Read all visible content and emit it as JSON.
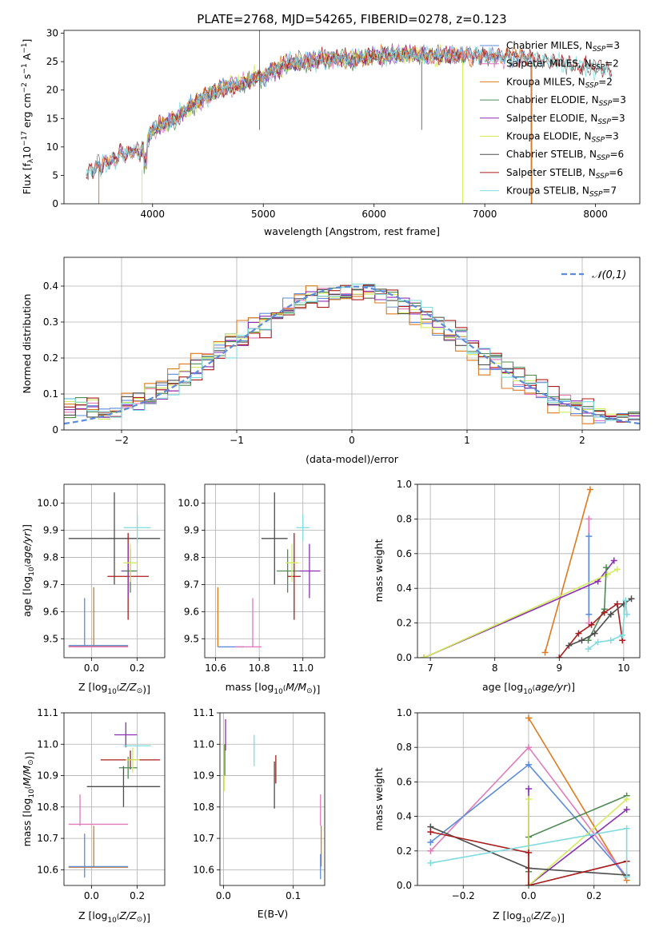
{
  "title": "PLATE=2768, MJD=54265, FIBERID=0278, z=0.123",
  "colors": {
    "Chabrier MILES": "#5b8bd9",
    "Salpeter MILES": "#e07ab9",
    "Kroupa MILES": "#de7a1d",
    "Chabrier ELODIE": "#4f8a54",
    "Salpeter ELODIE": "#8b2eb3",
    "Kroupa ELODIE": "#d4eb5c",
    "Chabrier STELIB": "#4d4d4d",
    "Salpeter STELIB": "#a81c1c",
    "Kroupa STELIB": "#7fdbde",
    "gaussian": "#5b8bd9"
  },
  "chart_data": [
    {
      "id": "spectrum",
      "type": "line",
      "xlabel": "wavelength [Angstrom, rest frame]",
      "ylabel": "Flux [f",
      "ylabel_parts": [
        "Flux [f",
        "λ",
        "10",
        "−17",
        " erg cm",
        "−2",
        " s",
        "−1",
        " A",
        "−1",
        "]"
      ],
      "xlim": [
        3200,
        8400
      ],
      "ylim": [
        0,
        30.5
      ],
      "xticks": [
        4000,
        5000,
        6000,
        7000,
        8000
      ],
      "yticks": [
        0,
        5,
        10,
        15,
        20,
        25,
        30
      ],
      "legend": "top-right",
      "series": [
        {
          "name": "Chabrier MILES",
          "label": "Chabrier MILES, N",
          "sub": "SSP",
          "n": "=3",
          "range": [
            3450,
            7420
          ]
        },
        {
          "name": "Salpeter MILES",
          "label": "Salpeter MILES, N",
          "sub": "SSP",
          "n": "=2",
          "range": [
            3450,
            7420
          ]
        },
        {
          "name": "Kroupa MILES",
          "label": "Kroupa MILES, N",
          "sub": "SSP",
          "n": "=2",
          "range": [
            3450,
            7420
          ]
        },
        {
          "name": "Chabrier ELODIE",
          "label": "Chabrier ELODIE, N",
          "sub": "SSP",
          "n": "=3",
          "range": [
            3900,
            6800
          ]
        },
        {
          "name": "Salpeter ELODIE",
          "label": "Salpeter ELODIE, N",
          "sub": "SSP",
          "n": "=3",
          "range": [
            3900,
            6800
          ]
        },
        {
          "name": "Kroupa ELODIE",
          "label": "Kroupa ELODIE, N",
          "sub": "SSP",
          "n": "=3",
          "range": [
            3900,
            6800
          ]
        },
        {
          "name": "Chabrier STELIB",
          "label": "Chabrier STELIB, N",
          "sub": "SSP",
          "n": "=6",
          "range": [
            3400,
            8150
          ]
        },
        {
          "name": "Salpeter STELIB",
          "label": "Salpeter STELIB, N",
          "sub": "SSP",
          "n": "=6",
          "range": [
            3400,
            8150
          ]
        },
        {
          "name": "Kroupa STELIB",
          "label": "Kroupa STELIB, N",
          "sub": "SSP",
          "n": "=7",
          "range": [
            3400,
            8150
          ]
        }
      ],
      "data_envelope": {
        "x": [
          3400,
          3500,
          3700,
          3900,
          3950,
          4000,
          4200,
          4400,
          4600,
          4800,
          5000,
          5200,
          5400,
          5600,
          5800,
          6000,
          6200,
          6400,
          6600,
          6800,
          7000,
          7200,
          7400,
          7600,
          7800,
          8000,
          8150
        ],
        "y": [
          5.5,
          6.5,
          8.5,
          9.5,
          11,
          13,
          15,
          18,
          20,
          21,
          22.5,
          24.5,
          25,
          25.5,
          25.5,
          26,
          26.3,
          26.2,
          26,
          26,
          26,
          25.8,
          25.5,
          25,
          24.5,
          24,
          23.5
        ]
      }
    },
    {
      "id": "residuals",
      "type": "line",
      "xlabel": "(data-model)/error",
      "ylabel": "Normed distribution",
      "xlim": [
        -2.5,
        2.5
      ],
      "ylim": [
        0,
        0.48
      ],
      "xticks": [
        -2,
        -1,
        0,
        1,
        2
      ],
      "yticks": [
        0.0,
        0.1,
        0.2,
        0.3,
        0.4
      ],
      "grid": true,
      "legend": "top-right",
      "legend_label": "𝒩(0,1)",
      "gaussian": {
        "mean": 0,
        "sigma": 1
      }
    },
    {
      "id": "age_vs_Z",
      "type": "scatter",
      "xlabel": "Z [log10(Z/Z⊙)]",
      "ylabel": "age  [log10(age/yr)]",
      "xlim": [
        -0.12,
        0.32
      ],
      "ylim": [
        9.43,
        10.07
      ],
      "xticks": [
        0.0,
        0.2
      ],
      "yticks": [
        9.5,
        9.6,
        9.7,
        9.8,
        9.9,
        10.0
      ],
      "grid": true,
      "points": [
        {
          "s": "Chabrier MILES",
          "x": -0.03,
          "xe": 0,
          "y": 9.56,
          "ye": 0.09
        },
        {
          "s": "Kroupa MILES",
          "x": 0.01,
          "xe": 0,
          "y": 9.58,
          "ye": 0.11
        },
        {
          "s": "Salpeter MILES",
          "x": -0.1,
          "xe": 0,
          "y": 9.47,
          "ye": 0
        },
        {
          "s": "Chabrier STELIB",
          "x": 0.1,
          "xe": 0.2,
          "y": 9.87,
          "ye": 0.17
        },
        {
          "s": "Salpeter STELIB",
          "x": 0.16,
          "xe": 0.09,
          "y": 9.73,
          "ye": 0.16
        },
        {
          "s": "Salpeter ELODIE",
          "x": 0.16,
          "xe": 0.03,
          "y": 9.75,
          "ye": 0.1
        },
        {
          "s": "Chabrier ELODIE",
          "x": 0.17,
          "xe": 0.03,
          "y": 9.75,
          "ye": 0.08
        },
        {
          "s": "Kroupa ELODIE",
          "x": 0.17,
          "xe": 0.03,
          "y": 9.78,
          "ye": 0.07
        },
        {
          "s": "Kroupa STELIB",
          "x": 0.2,
          "xe": 0.06,
          "y": 9.91,
          "ye": 0.05
        },
        {
          "s": "Kroupa MILES",
          "x": 0.03,
          "xe": 0.13,
          "y": 9.472,
          "ye": 0
        },
        {
          "s": "Chabrier MILES",
          "x": 0.03,
          "xe": 0.13,
          "y": 9.475,
          "ye": 0
        },
        {
          "s": "Salpeter MILES",
          "x": 0.03,
          "xe": 0.13,
          "y": 9.47,
          "ye": 0
        }
      ]
    },
    {
      "id": "age_vs_mass",
      "type": "scatter",
      "xlabel": "mass [log10(M/M⊙)]",
      "ylabel": "",
      "xlim": [
        10.55,
        11.1
      ],
      "ylim": [
        9.43,
        10.07
      ],
      "xticks": [
        10.6,
        10.8,
        11.0
      ],
      "yticks": [
        9.5,
        9.6,
        9.7,
        9.8,
        9.9,
        10.0
      ],
      "grid": true,
      "points": [
        {
          "s": "Kroupa MILES",
          "x": 10.61,
          "xe": 0,
          "y": 9.58,
          "ye": 0.11
        },
        {
          "s": "Chabrier MILES",
          "x": 10.67,
          "xe": 0.06,
          "y": 9.47,
          "ye": 0
        },
        {
          "s": "Salpeter MILES",
          "x": 10.77,
          "xe": 0,
          "y": 9.56,
          "ye": 0.09
        },
        {
          "s": "Salpeter MILES",
          "x": 10.75,
          "xe": 0.06,
          "y": 9.47,
          "ye": 0
        },
        {
          "s": "Chabrier STELIB",
          "x": 10.87,
          "xe": 0.06,
          "y": 9.87,
          "ye": 0.17
        },
        {
          "s": "Chabrier ELODIE",
          "x": 10.93,
          "xe": 0.05,
          "y": 9.75,
          "ye": 0.08
        },
        {
          "s": "Salpeter STELIB",
          "x": 10.96,
          "xe": 0.03,
          "y": 9.73,
          "ye": 0.16
        },
        {
          "s": "Kroupa ELODIE",
          "x": 10.95,
          "xe": 0.03,
          "y": 9.78,
          "ye": 0.07
        },
        {
          "s": "Kroupa STELIB",
          "x": 11.0,
          "xe": 0.03,
          "y": 9.91,
          "ye": 0.05
        },
        {
          "s": "Salpeter ELODIE",
          "x": 11.03,
          "xe": 0.05,
          "y": 9.75,
          "ye": 0.1
        }
      ]
    },
    {
      "id": "weight_vs_age",
      "type": "line",
      "xlabel": "age  [log10(age/yr)]",
      "ylabel": "mass weight",
      "xlim": [
        6.8,
        10.25
      ],
      "ylim": [
        0,
        1
      ],
      "xticks": [
        7,
        8,
        9,
        10
      ],
      "yticks": [
        0.0,
        0.2,
        0.4,
        0.6,
        0.8,
        1.0
      ],
      "grid": true,
      "series": [
        {
          "name": "Kroupa MILES",
          "x": [
            8.78,
            9.48
          ],
          "y": [
            0.03,
            0.97
          ]
        },
        {
          "name": "Salpeter MILES",
          "x": [
            9.46,
            9.46
          ],
          "y": [
            0.2,
            0.8
          ]
        },
        {
          "name": "Chabrier MILES",
          "x": [
            9.46,
            9.46
          ],
          "y": [
            0.25,
            0.7
          ]
        },
        {
          "name": "Salpeter ELODIE",
          "x": [
            6.9,
            9.6,
            9.85
          ],
          "y": [
            0.0,
            0.44,
            0.56
          ]
        },
        {
          "name": "Kroupa ELODIE",
          "x": [
            6.9,
            9.75,
            9.9
          ],
          "y": [
            0.0,
            0.48,
            0.51
          ]
        },
        {
          "name": "Chabrier ELODIE",
          "x": [
            9.45,
            9.7,
            9.73
          ],
          "y": [
            0.1,
            0.28,
            0.52
          ]
        },
        {
          "name": "Salpeter STELIB",
          "x": [
            9.0,
            9.3,
            9.5,
            9.7,
            9.9,
            9.98
          ],
          "y": [
            0.0,
            0.14,
            0.19,
            0.26,
            0.31,
            0.1
          ]
        },
        {
          "name": "Chabrier STELIB",
          "x": [
            9.15,
            9.35,
            9.55,
            9.8,
            10.0,
            10.12
          ],
          "y": [
            0.07,
            0.1,
            0.14,
            0.25,
            0.31,
            0.34
          ]
        },
        {
          "name": "Kroupa STELIB",
          "x": [
            9.45,
            9.6,
            9.8,
            9.98,
            10.03,
            10.05
          ],
          "y": [
            0.05,
            0.09,
            0.1,
            0.13,
            0.33,
            0.25
          ]
        }
      ]
    },
    {
      "id": "mass_vs_Z",
      "type": "scatter",
      "xlabel": "Z [log10(Z/Z⊙)]",
      "ylabel": "mass [log10(M/M⊙)]",
      "xlim": [
        -0.12,
        0.32
      ],
      "ylim": [
        10.55,
        11.1
      ],
      "xticks": [
        0.0,
        0.2
      ],
      "yticks": [
        10.6,
        10.7,
        10.8,
        10.9,
        11.0,
        11.1
      ],
      "grid": true,
      "points": [
        {
          "s": "Chabrier MILES",
          "x": -0.03,
          "xe": 0,
          "y": 10.645,
          "ye": 0.07
        },
        {
          "s": "Kroupa MILES",
          "x": 0.01,
          "xe": 0,
          "y": 10.675,
          "ye": 0.065
        },
        {
          "s": "Salpeter MILES",
          "x": -0.05,
          "xe": 0,
          "y": 10.79,
          "ye": 0.05
        },
        {
          "s": "Salpeter MILES",
          "x": 0.03,
          "xe": 0.13,
          "y": 10.745,
          "ye": 0
        },
        {
          "s": "Kroupa MILES",
          "x": 0.03,
          "xe": 0.13,
          "y": 10.608,
          "ye": 0
        },
        {
          "s": "Chabrier MILES",
          "x": 0.03,
          "xe": 0.13,
          "y": 10.61,
          "ye": 0
        },
        {
          "s": "Chabrier STELIB",
          "x": 0.14,
          "xe": 0.16,
          "y": 10.865,
          "ye": 0.065
        },
        {
          "s": "Salpeter STELIB",
          "x": 0.17,
          "xe": 0.13,
          "y": 10.95,
          "ye": 0.03
        },
        {
          "s": "Chabrier ELODIE",
          "x": 0.16,
          "xe": 0.04,
          "y": 10.925,
          "ye": 0.035
        },
        {
          "s": "Kroupa ELODIE",
          "x": 0.18,
          "xe": 0.03,
          "y": 10.95,
          "ye": 0.04
        },
        {
          "s": "Salpeter ELODIE",
          "x": 0.15,
          "xe": 0.05,
          "y": 11.03,
          "ye": 0.04
        },
        {
          "s": "Kroupa STELIB",
          "x": 0.2,
          "xe": 0.06,
          "y": 10.995,
          "ye": 0.035
        }
      ]
    },
    {
      "id": "mass_vs_EBV",
      "type": "scatter",
      "xlabel": "E(B-V)",
      "ylabel": "",
      "xlim": [
        -0.005,
        0.145
      ],
      "ylim": [
        10.55,
        11.1
      ],
      "xticks": [
        0.0,
        0.1
      ],
      "yticks": [
        10.6,
        10.7,
        10.8,
        10.9,
        11.0,
        11.1
      ],
      "grid": true,
      "points": [
        {
          "s": "Kroupa ELODIE",
          "x": 0.001,
          "xe": 0,
          "y": 10.925,
          "ye": 0.075
        },
        {
          "s": "Chabrier ELODIE",
          "x": 0.002,
          "xe": 0,
          "y": 10.95,
          "ye": 0.05
        },
        {
          "s": "Salpeter ELODIE",
          "x": 0.003,
          "xe": 0,
          "y": 11.03,
          "ye": 0.05
        },
        {
          "s": "Kroupa STELIB",
          "x": 0.044,
          "xe": 0,
          "y": 10.98,
          "ye": 0.05
        },
        {
          "s": "Chabrier STELIB",
          "x": 0.073,
          "xe": 0,
          "y": 10.87,
          "ye": 0.075
        },
        {
          "s": "Salpeter STELIB",
          "x": 0.075,
          "xe": 0,
          "y": 10.92,
          "ye": 0.045
        },
        {
          "s": "Salpeter MILES",
          "x": 0.139,
          "xe": 0,
          "y": 10.79,
          "ye": 0.05
        },
        {
          "s": "Kroupa MILES",
          "x": 0.14,
          "xe": 0,
          "y": 10.675,
          "ye": 0.065
        },
        {
          "s": "Chabrier MILES",
          "x": 0.139,
          "xe": 0,
          "y": 10.61,
          "ye": 0.04
        }
      ]
    },
    {
      "id": "weight_vs_Z",
      "type": "line",
      "xlabel": "Z [log10(Z/Z⊙)]",
      "ylabel": "mass weight",
      "xlim": [
        -0.34,
        0.34
      ],
      "ylim": [
        0,
        1
      ],
      "xticks": [
        -0.2,
        0.0,
        0.2
      ],
      "yticks": [
        0.0,
        0.2,
        0.4,
        0.6,
        0.8,
        1.0
      ],
      "grid": true,
      "series": [
        {
          "name": "Kroupa MILES",
          "x": [
            0.0,
            0.3
          ],
          "y": [
            0.97,
            0.03
          ]
        },
        {
          "name": "Salpeter MILES",
          "x": [
            -0.3,
            0.0,
            0.3
          ],
          "y": [
            0.2,
            0.8,
            0.05
          ]
        },
        {
          "name": "Chabrier MILES",
          "x": [
            -0.3,
            0.0,
            0.3
          ],
          "y": [
            0.25,
            0.7,
            0.05
          ]
        },
        {
          "name": "Chabrier ELODIE",
          "x": [
            0.0,
            0.0,
            0.3
          ],
          "y": [
            0.08,
            0.28,
            0.52
          ]
        },
        {
          "name": "Salpeter ELODIE",
          "x": [
            0.0,
            0.0,
            0.3
          ],
          "y": [
            0.56,
            0.0,
            0.44
          ]
        },
        {
          "name": "Kroupa ELODIE",
          "x": [
            0.0,
            0.0,
            0.3
          ],
          "y": [
            0.5,
            0.0,
            0.5
          ]
        },
        {
          "name": "Chabrier STELIB",
          "x": [
            -0.3,
            0.0,
            0.3
          ],
          "y": [
            0.34,
            0.1,
            0.06
          ]
        },
        {
          "name": "Salpeter STELIB",
          "x": [
            -0.3,
            0.0,
            0.0,
            0.3
          ],
          "y": [
            0.31,
            0.19,
            0.0,
            0.14
          ]
        },
        {
          "name": "Kroupa STELIB",
          "x": [
            -0.3,
            0.3,
            0.3
          ],
          "y": [
            0.13,
            0.33,
            0.05
          ]
        }
      ]
    }
  ]
}
